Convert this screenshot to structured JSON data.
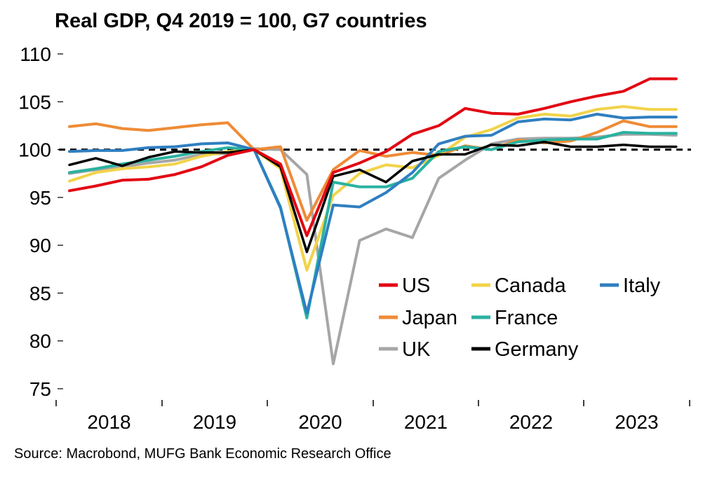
{
  "chart_data": {
    "type": "line",
    "title": "Real GDP, Q4 2019 = 100, G7 countries",
    "source": "Source: Macrobond, MUFG Bank Economic Research Office",
    "xlabel": "",
    "ylabel": "",
    "ylim": [
      75,
      110
    ],
    "yticks": [
      "110",
      "105",
      "100",
      "95",
      "90",
      "85",
      "80",
      "75"
    ],
    "year_labels": [
      "2018",
      "2019",
      "2020",
      "2021",
      "2022",
      "2023"
    ],
    "x_start": "2017Q4",
    "x": [
      "2017Q4",
      "2018Q1",
      "2018Q2",
      "2018Q3",
      "2018Q4",
      "2019Q1",
      "2019Q2",
      "2019Q3",
      "2019Q4",
      "2020Q1",
      "2020Q2",
      "2020Q3",
      "2020Q4",
      "2021Q1",
      "2021Q2",
      "2021Q3",
      "2021Q4",
      "2022Q1",
      "2022Q2",
      "2022Q3",
      "2022Q4",
      "2023Q1",
      "2023Q2",
      "2023Q3"
    ],
    "reference_line": 100,
    "legend_position": "lower-right",
    "series": [
      {
        "name": "UK",
        "color": "#a6a6a6",
        "values": [
          97.5,
          97.9,
          98.2,
          98.6,
          98.9,
          99.5,
          99.6,
          100.1,
          100.0,
          97.4,
          77.6,
          90.5,
          91.7,
          90.8,
          97.0,
          98.9,
          100.6,
          101.1,
          101.2,
          101.2,
          101.3,
          101.6,
          101.6,
          101.5
        ]
      },
      {
        "name": "Japan",
        "color": "#ef8b36",
        "values": [
          102.4,
          102.7,
          102.2,
          102.0,
          102.3,
          102.6,
          102.8,
          100.0,
          100.3,
          92.6,
          97.9,
          99.9,
          99.3,
          99.7,
          99.4,
          100.4,
          100.0,
          101.0,
          100.7,
          100.9,
          101.8,
          103.0,
          102.4,
          102.4
        ]
      },
      {
        "name": "Canada",
        "color": "#f2d349",
        "values": [
          96.7,
          97.6,
          98.0,
          98.2,
          98.5,
          99.3,
          99.8,
          100.0,
          98.0,
          87.4,
          95.2,
          97.5,
          98.4,
          98.1,
          99.4,
          101.3,
          102.1,
          103.3,
          103.7,
          103.5,
          104.2,
          104.5,
          104.2,
          104.2
        ]
      },
      {
        "name": "France",
        "color": "#29b2a0",
        "values": [
          97.6,
          98.0,
          98.5,
          98.9,
          99.3,
          99.8,
          100.2,
          100.0,
          94.0,
          82.4,
          96.6,
          96.1,
          96.1,
          97.0,
          99.8,
          100.3,
          100.0,
          100.8,
          101.0,
          101.1,
          101.1,
          101.8,
          101.7,
          101.7
        ]
      },
      {
        "name": "Italy",
        "color": "#2f7fc1",
        "values": [
          99.8,
          99.9,
          99.9,
          100.2,
          100.3,
          100.6,
          100.7,
          100.0,
          93.9,
          82.9,
          94.2,
          94.0,
          95.5,
          97.6,
          100.6,
          101.4,
          101.5,
          102.9,
          103.2,
          103.1,
          103.7,
          103.3,
          103.4,
          103.4
        ]
      },
      {
        "name": "Germany",
        "color": "#000000",
        "values": [
          98.4,
          99.1,
          98.3,
          99.2,
          99.8,
          99.7,
          99.7,
          100.0,
          98.2,
          89.3,
          97.2,
          97.9,
          96.6,
          98.8,
          99.5,
          99.5,
          100.5,
          100.4,
          100.8,
          100.3,
          100.3,
          100.5,
          100.3,
          100.3
        ]
      },
      {
        "name": "US",
        "color": "#e30613",
        "values": [
          95.7,
          96.2,
          96.8,
          96.9,
          97.4,
          98.2,
          99.4,
          100.0,
          98.5,
          91.0,
          97.6,
          98.6,
          99.8,
          101.6,
          102.5,
          104.3,
          103.8,
          103.7,
          104.3,
          105.0,
          105.6,
          106.1,
          107.4,
          107.4
        ]
      }
    ],
    "legend": [
      {
        "name": "US",
        "color": "#e30613"
      },
      {
        "name": "Canada",
        "color": "#f2d349"
      },
      {
        "name": "Italy",
        "color": "#2f7fc1"
      },
      {
        "name": "Japan",
        "color": "#ef8b36"
      },
      {
        "name": "France",
        "color": "#29b2a0"
      },
      {
        "name": "UK",
        "color": "#a6a6a6"
      },
      {
        "name": "Germany",
        "color": "#000000"
      }
    ]
  }
}
